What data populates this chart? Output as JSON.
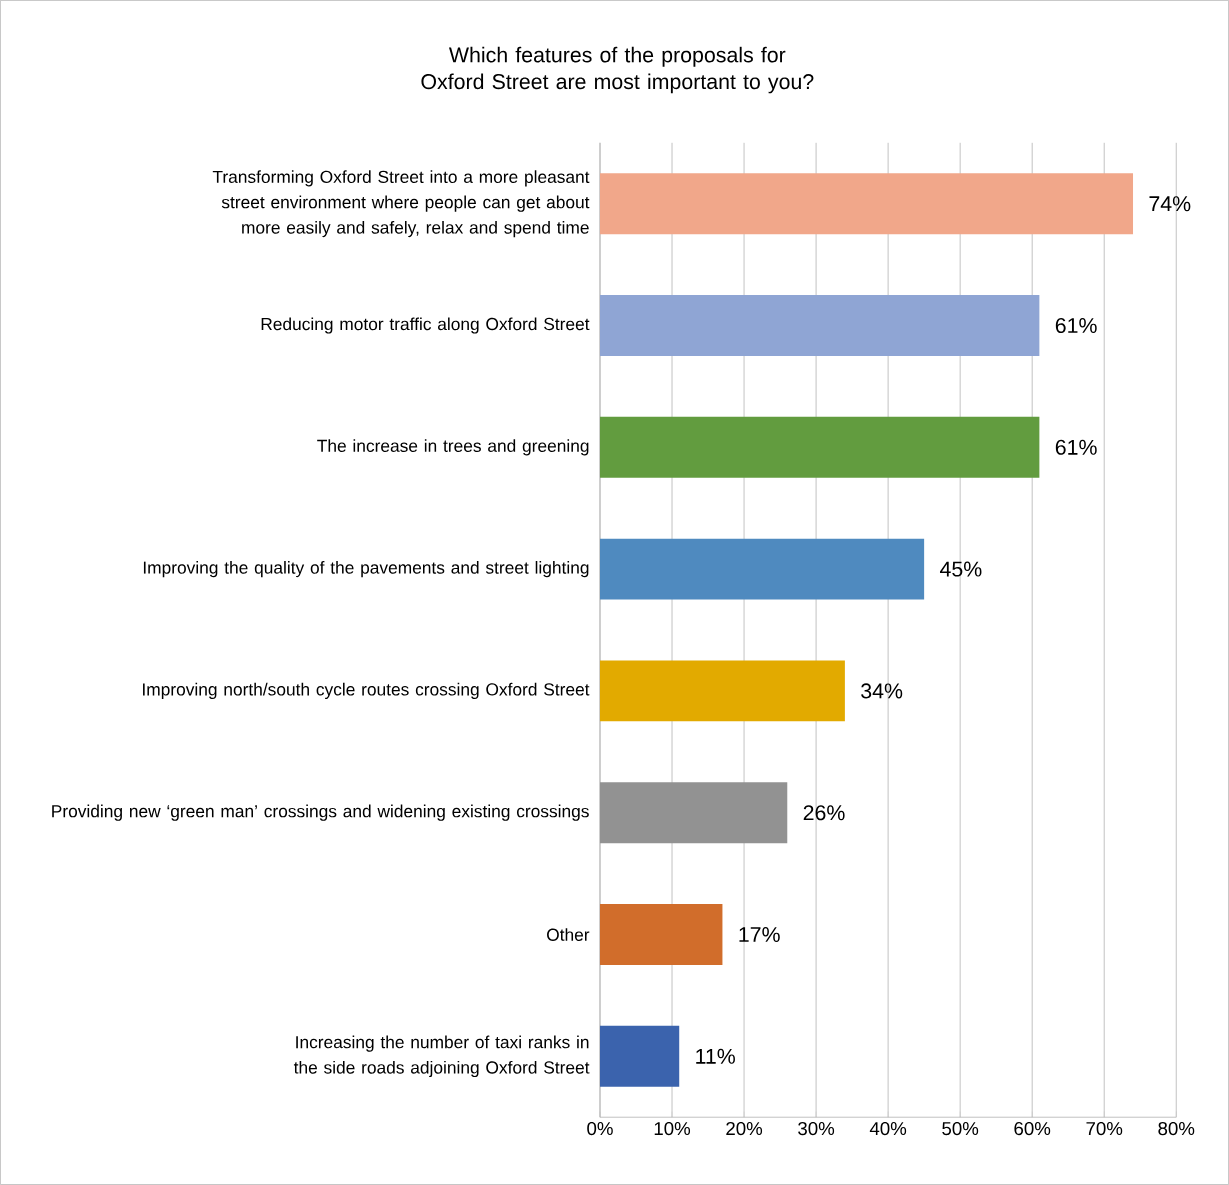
{
  "chart_data": {
    "type": "bar",
    "orientation": "horizontal",
    "title": "Which features of the proposals for Oxford Street are most important to you?",
    "categories": [
      "Transforming Oxford Street into a more pleasant street environment where people can get about more easily and safely, relax and spend time",
      "Reducing motor traffic along Oxford Street",
      "The increase in trees and greening",
      "Improving the quality of the pavements and street lighting",
      "Improving north/south cycle routes crossing Oxford Street",
      "Providing new ‘green man’ crossings and widening existing crossings",
      "Other",
      "Increasing the number of taxi ranks in the side roads adjoining Oxford Street"
    ],
    "values": [
      74,
      61,
      61,
      45,
      34,
      26,
      17,
      11
    ],
    "value_labels": [
      "74%",
      "61%",
      "61%",
      "45%",
      "34%",
      "26%",
      "17%",
      "11%"
    ],
    "colors": [
      "#f1a78a",
      "#8fa5d4",
      "#629c3f",
      "#4f8abf",
      "#e2aa00",
      "#929292",
      "#d16d2b",
      "#3b63ad"
    ],
    "xlim": [
      0,
      80
    ],
    "xticks": [
      {
        "value": 0,
        "label": "0%"
      },
      {
        "value": 10,
        "label": "10%"
      },
      {
        "value": 20,
        "label": "20%"
      },
      {
        "value": 30,
        "label": "30%"
      },
      {
        "value": 40,
        "label": "40%"
      },
      {
        "value": 50,
        "label": "50%"
      },
      {
        "value": 60,
        "label": "60%"
      },
      {
        "value": 70,
        "label": "70%"
      },
      {
        "value": 80,
        "label": "80%"
      }
    ],
    "grid": "x"
  }
}
